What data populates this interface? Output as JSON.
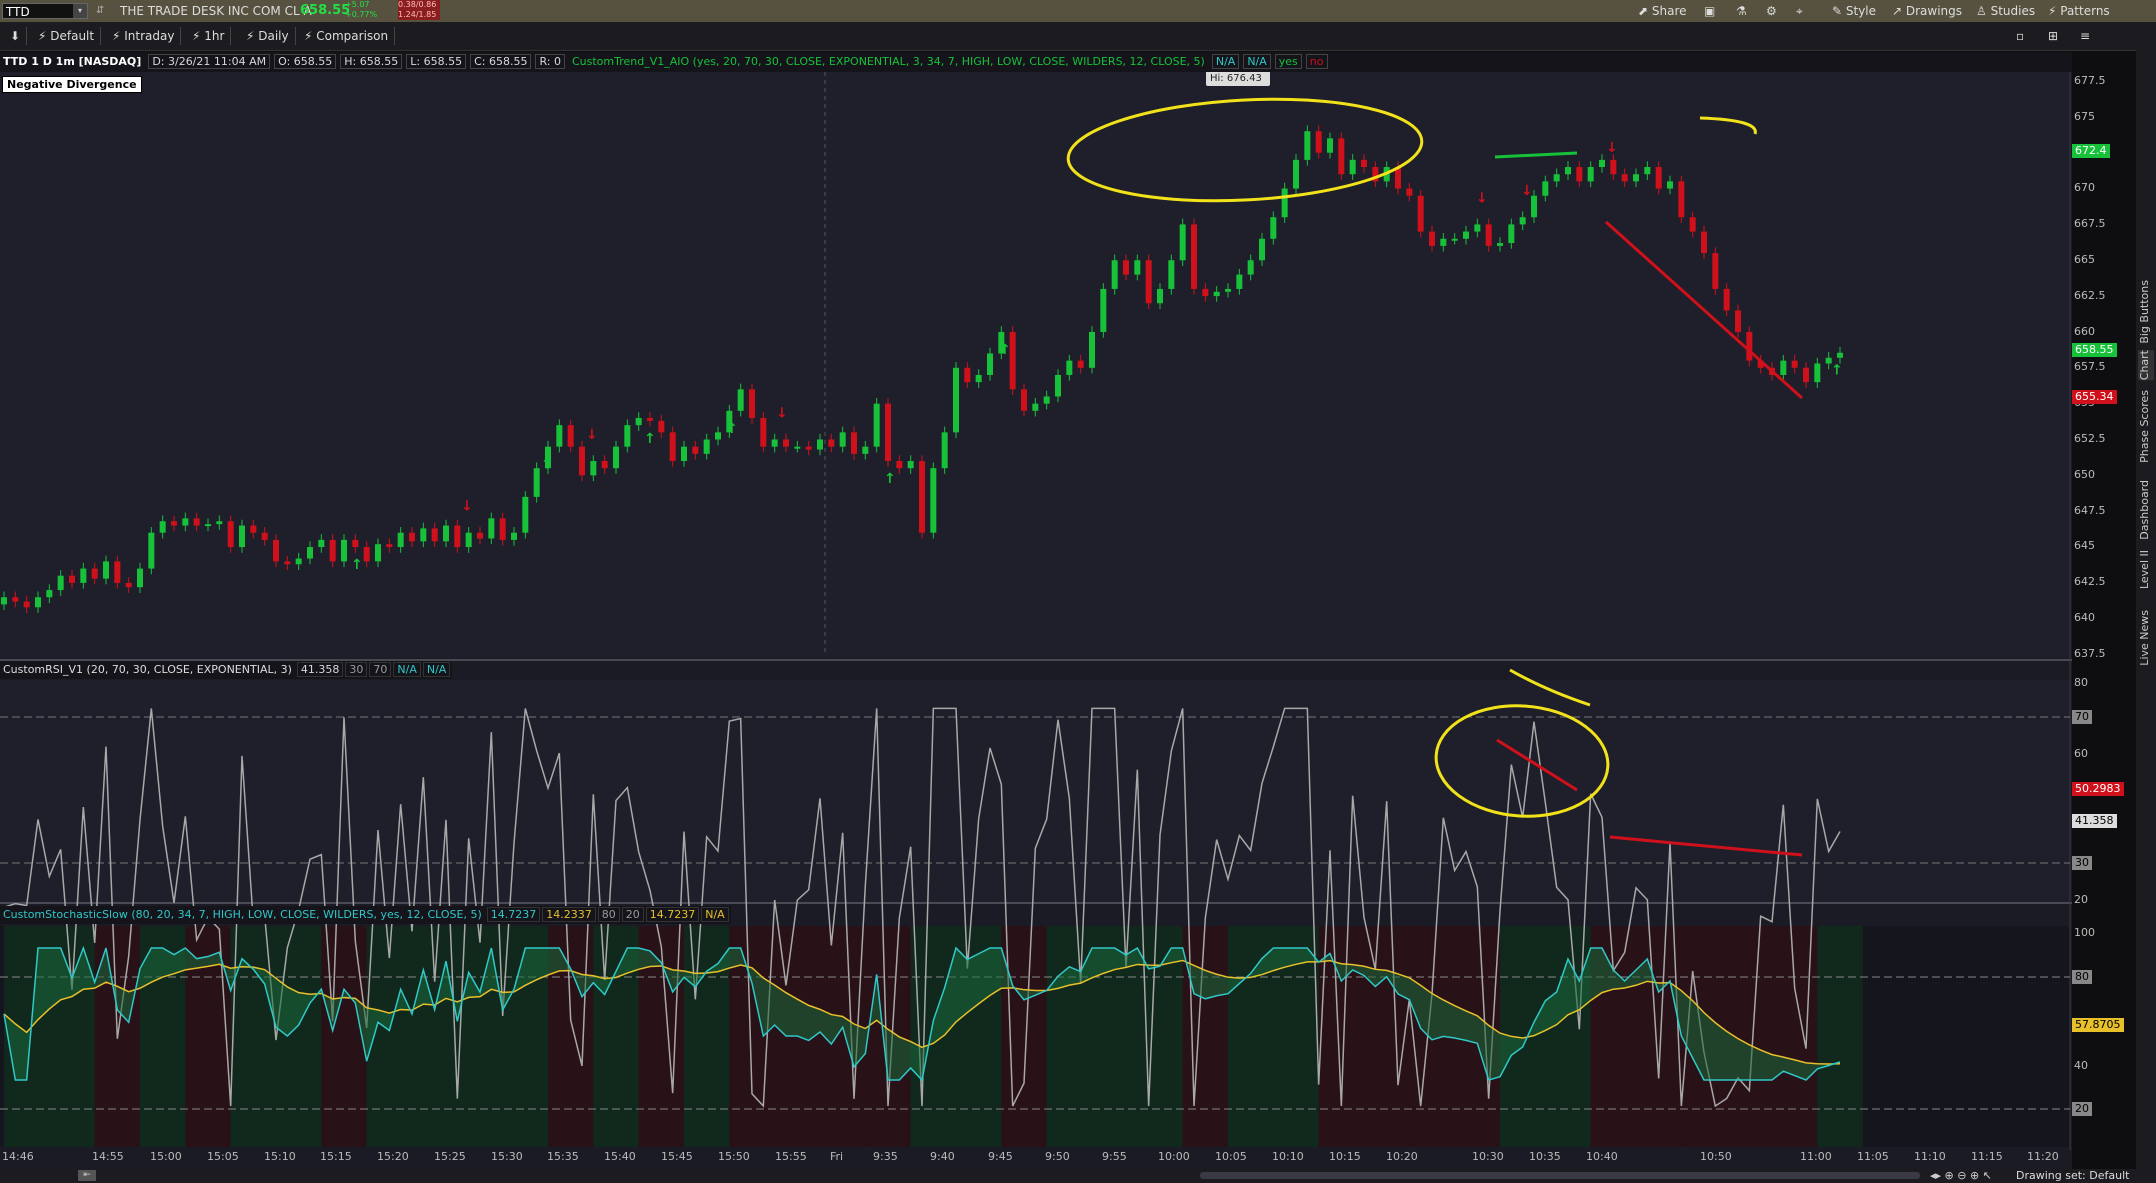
{
  "topbar": {
    "symbol": "TTD",
    "company": "THE TRADE DESK INC COM CL A",
    "last_price": "658.55",
    "change_small_1": "+5.07",
    "change_small_2": "+0.77%",
    "bid_small": "0.38/0.86",
    "ask_small": "1.24/1.85"
  },
  "toolbar": {
    "buttons": [
      "Default",
      "Intraday",
      "1hr",
      "Daily",
      "Comparison"
    ],
    "right": [
      "Share",
      "Style",
      "Drawings",
      "Studies",
      "Patterns"
    ]
  },
  "infobar": {
    "title": "TTD 1 D 1m [NASDAQ]",
    "date": "D: 3/26/21 11:04 AM",
    "open": "O: 658.55",
    "high": "H: 658.55",
    "low": "L: 658.55",
    "close": "C: 658.55",
    "range": "R: 0",
    "study": "CustomTrend_V1_AIO (yes, 20, 70, 30, CLOSE, EXPONENTIAL, 3, 34, 7, HIGH, LOW, CLOSE, WILDERS, 12, CLOSE, 5)",
    "na1": "N/A",
    "na2": "N/A",
    "yes": "yes",
    "no": "no"
  },
  "annotation": "Negative Divergence",
  "hi_label": "Hi: 676.43",
  "price_axis": [
    "677.5",
    "675",
    "672.5",
    "670",
    "667.5",
    "665",
    "662.5",
    "660",
    "657.5",
    "655",
    "652.5",
    "650",
    "647.5",
    "645",
    "642.5",
    "640",
    "637.5"
  ],
  "price_tags": {
    "green_top": "672.4",
    "current": "658.55",
    "red": "655.34"
  },
  "rsi": {
    "label": "CustomRSI_V1 (20, 70, 30, CLOSE, EXPONENTIAL, 3)",
    "value": "41.358",
    "l1": "30",
    "l2": "70",
    "na1": "N/A",
    "na2": "N/A",
    "axis": [
      "80",
      "70",
      "60",
      "50.2983",
      "41.358",
      "30",
      "20"
    ]
  },
  "stoch": {
    "label": "CustomStochasticSlow (80, 20, 34, 7, HIGH, LOW, CLOSE, WILDERS, yes, 12, CLOSE, 5)",
    "v1": "14.7237",
    "v2": "14.2337",
    "l1": "80",
    "l2": "20",
    "v3": "14.7237",
    "na": "N/A",
    "axis": [
      "100",
      "80",
      "57.8705",
      "40",
      "20"
    ]
  },
  "time_axis": [
    "14:46",
    "14:55",
    "15:00",
    "15:05",
    "15:10",
    "15:15",
    "15:20",
    "15:25",
    "15:30",
    "15:35",
    "15:40",
    "15:45",
    "15:50",
    "15:55",
    "Fri",
    "9:35",
    "9:40",
    "9:45",
    "9:50",
    "9:55",
    "10:00",
    "10:05",
    "10:10",
    "10:15",
    "10:20",
    "10:30",
    "10:35",
    "10:40",
    "10:50",
    "11:00",
    "11:05",
    "11:10",
    "11:15",
    "11:20"
  ],
  "right_tabs": [
    "Live News",
    "Level II",
    "Dashboard",
    "Phase Scores",
    "Chart",
    "Big Buttons"
  ],
  "status": {
    "drawing_set": "Drawing set: Default"
  },
  "colors": {
    "up": "#17c23a",
    "down": "#d0101a",
    "annotation": "#f2e21a",
    "rsi": "#b0b0b0",
    "stoch_fast": "#30c8c8",
    "stoch_slow": "#e8c02a"
  }
}
